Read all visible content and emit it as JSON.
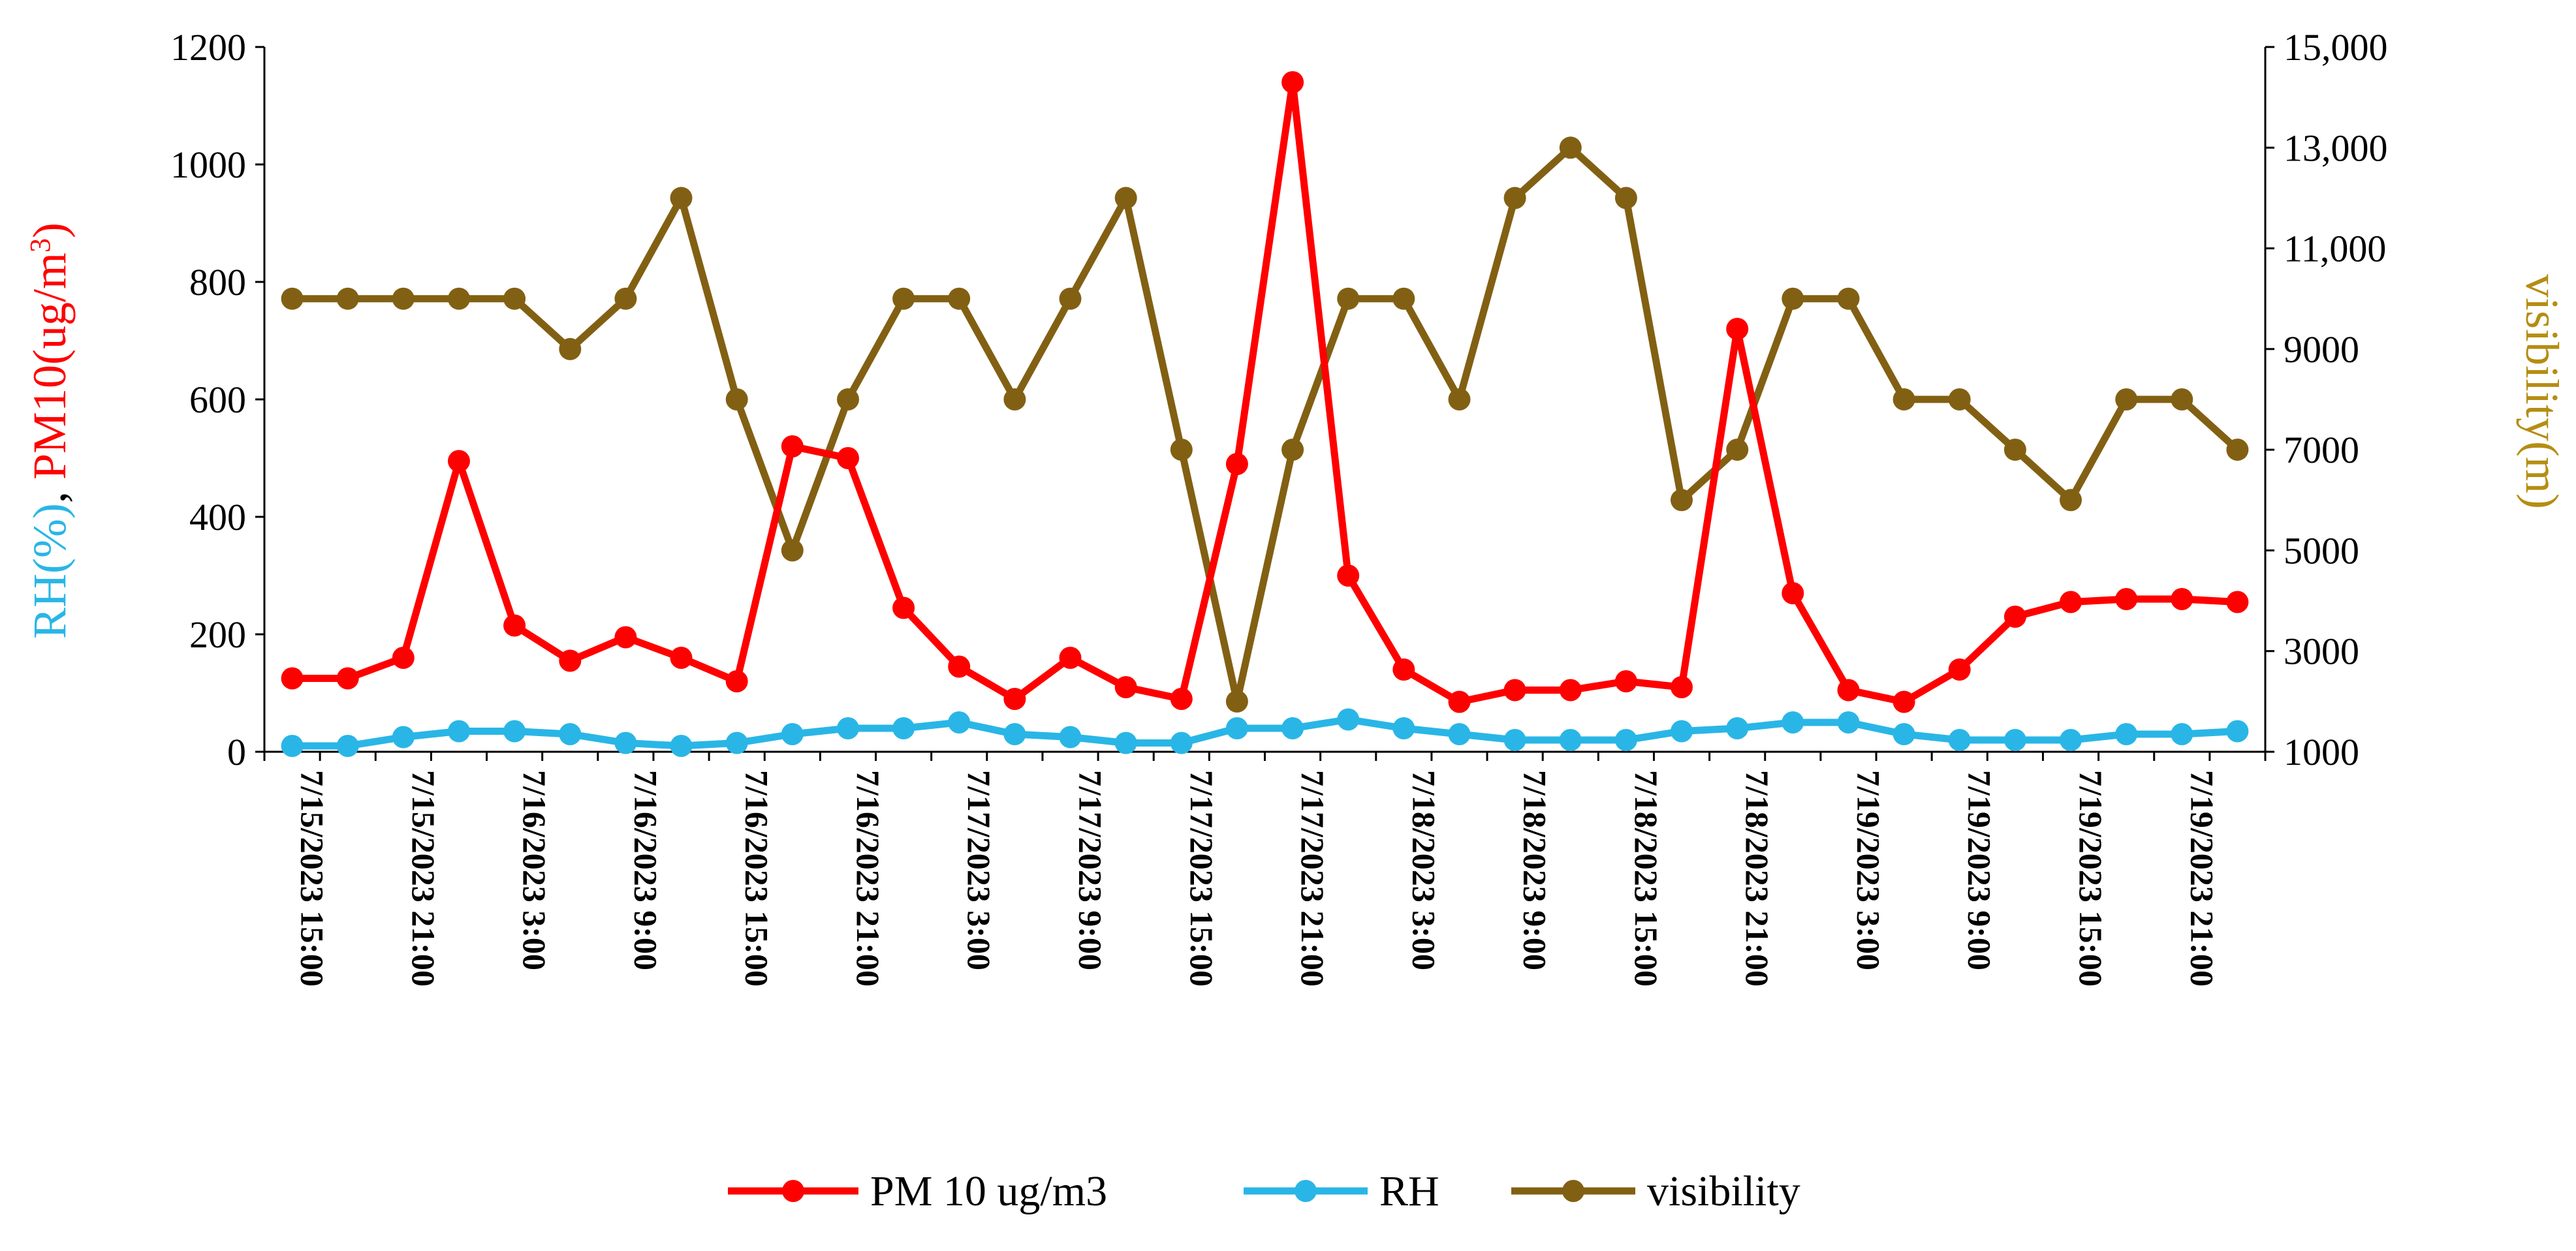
{
  "chart_data": {
    "type": "line",
    "title": "",
    "y_left_label": {
      "parts": [
        "RH(%)",
        ", ",
        "PM10(ug/m",
        "3",
        ")"
      ],
      "colors": [
        "#29b6e6",
        "#000000",
        "#ff0000",
        "#ff0000",
        "#ff0000"
      ]
    },
    "y_right_label": "visibility(m)",
    "y_left_ticks": [
      "0",
      "200",
      "400",
      "600",
      "800",
      "1000",
      "1200"
    ],
    "y_left_range": [
      0,
      1200
    ],
    "y_right_ticks": [
      "1000",
      "3000",
      "5000",
      "7000",
      "9000",
      "11,000",
      "13,000",
      "15,000"
    ],
    "y_right_range": [
      1000,
      15000
    ],
    "x_tick_labels": [
      "7/15/2023 15:00",
      "7/15/2023 21:00",
      "7/16/2023 3:00",
      "7/16/2023 9:00",
      "7/16/2023 15:00",
      "7/16/2023 21:00",
      "7/17/2023 3:00",
      "7/17/2023 9:00",
      "7/17/2023 15:00",
      "7/17/2023 21:00",
      "7/18/2023 3:00",
      "7/18/2023 9:00",
      "7/18/2023 15:00",
      "7/18/2023 21:00",
      "7/19/2023 3:00",
      "7/19/2023 9:00",
      "7/19/2023 15:00",
      "7/19/2023 21:00"
    ],
    "x_points_per_tick": 2,
    "series": [
      {
        "name": "PM 10 ug/m3",
        "axis": "left",
        "color": "#ff0000",
        "values": [
          125,
          125,
          160,
          495,
          215,
          155,
          195,
          160,
          120,
          520,
          500,
          245,
          145,
          90,
          160,
          110,
          90,
          490,
          1140,
          300,
          140,
          85,
          105,
          105,
          120,
          110,
          720,
          270,
          105,
          85,
          140,
          230,
          255,
          260,
          260,
          255
        ]
      },
      {
        "name": "RH",
        "axis": "left",
        "color": "#29b6e6",
        "values": [
          10,
          10,
          25,
          35,
          35,
          30,
          15,
          10,
          15,
          30,
          40,
          40,
          50,
          30,
          25,
          15,
          15,
          40,
          40,
          55,
          40,
          30,
          20,
          20,
          20,
          35,
          40,
          50,
          50,
          30,
          20,
          20,
          20,
          30,
          30,
          35
        ]
      },
      {
        "name": "visibility",
        "axis": "right",
        "color": "#826013",
        "values": [
          10000,
          10000,
          10000,
          10000,
          10000,
          9000,
          10000,
          12000,
          8000,
          5000,
          8000,
          10000,
          10000,
          8000,
          10000,
          12000,
          7000,
          2000,
          7000,
          10000,
          10000,
          8000,
          12000,
          13000,
          12000,
          6000,
          7000,
          10000,
          10000,
          8000,
          8000,
          7000,
          6000,
          8000,
          8000,
          7000
        ]
      }
    ],
    "legend": [
      "PM 10 ug/m3",
      "RH",
      "visibility"
    ],
    "legend_position": "bottom",
    "grid": false
  }
}
